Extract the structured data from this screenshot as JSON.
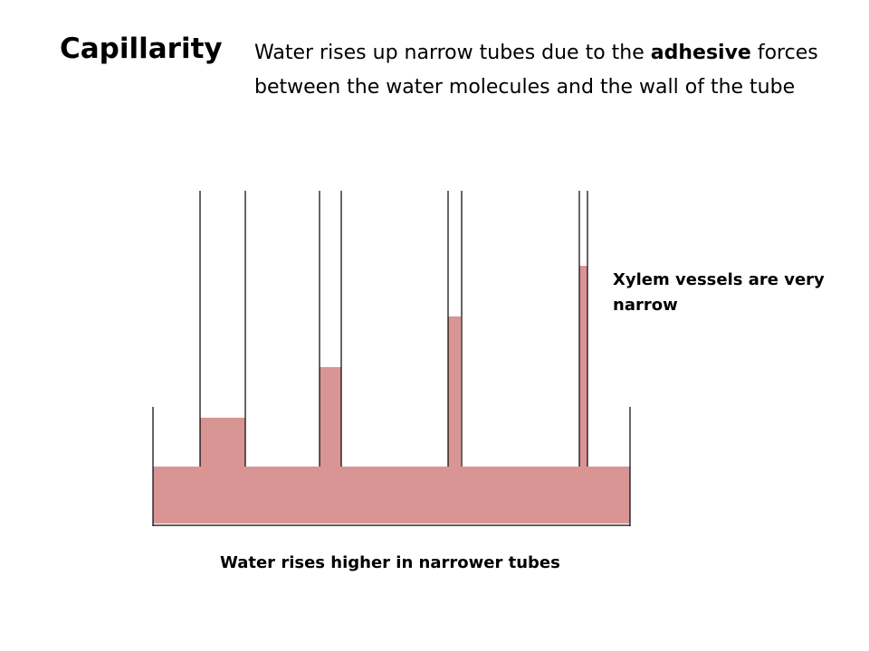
{
  "title": "Capillarity",
  "intro": {
    "before": "Water rises up narrow tubes due to the ",
    "emphasis": "adhesive",
    "after": " forces between the water molecules and the wall of the tube"
  },
  "side_note": "Xylem vessels are very narrow",
  "caption": "Water rises higher in narrower tubes",
  "colors": {
    "water": "#d99594",
    "outline": "#000000"
  },
  "tubes": [
    {
      "name": "widest-tube",
      "relative_width": 1.0,
      "water_rise_rank": 1
    },
    {
      "name": "medium-tube",
      "relative_width": 0.48,
      "water_rise_rank": 2
    },
    {
      "name": "narrow-tube",
      "relative_width": 0.28,
      "water_rise_rank": 3
    },
    {
      "name": "narrowest-tube",
      "relative_width": 0.16,
      "water_rise_rank": 4
    }
  ]
}
